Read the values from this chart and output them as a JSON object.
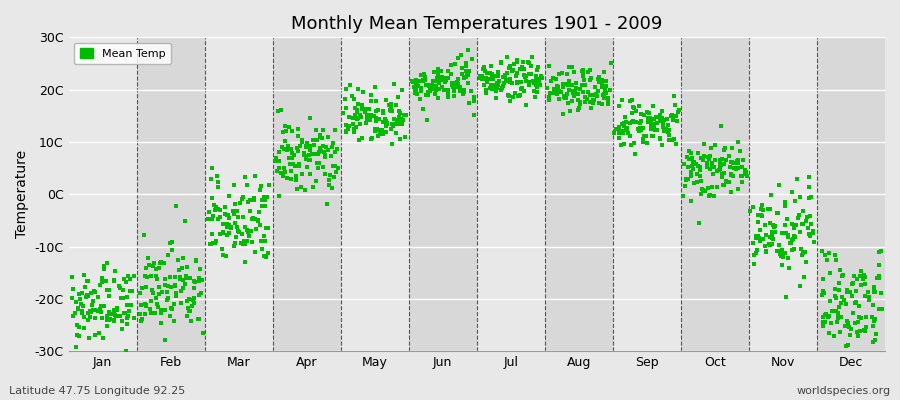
{
  "title": "Monthly Mean Temperatures 1901 - 2009",
  "ylabel": "Temperature",
  "bottom_left_text": "Latitude 47.75 Longitude 92.25",
  "bottom_right_text": "worldspecies.org",
  "legend_label": "Mean Temp",
  "marker_color": "#00bb00",
  "marker_size": 3.5,
  "background_color": "#e8e8e8",
  "plot_bg_color": "#e8e8e8",
  "band_color_light": "#e8e8e8",
  "band_color_dark": "#d8d8d8",
  "ylim": [
    -30,
    30
  ],
  "yticks": [
    -30,
    -20,
    -10,
    0,
    10,
    20,
    30
  ],
  "ytick_labels": [
    "-30C",
    "-20C",
    "-10C",
    "0C",
    "10C",
    "20C",
    "30C"
  ],
  "months": [
    "Jan",
    "Feb",
    "Mar",
    "Apr",
    "May",
    "Jun",
    "Jul",
    "Aug",
    "Sep",
    "Oct",
    "Nov",
    "Dec"
  ],
  "month_means": [
    -21,
    -18,
    -5,
    7,
    15,
    21,
    22,
    20,
    13,
    5,
    -7,
    -20
  ],
  "month_stds": [
    3.5,
    4.0,
    4.5,
    3.5,
    2.5,
    2.0,
    2.0,
    2.0,
    2.5,
    3.0,
    4.0,
    4.5
  ],
  "month_trends": [
    0.8,
    0.6,
    0.7,
    0.5,
    0.4,
    0.3,
    0.3,
    0.3,
    0.4,
    0.5,
    0.6,
    0.7
  ],
  "n_years": 109,
  "seed": 12345
}
